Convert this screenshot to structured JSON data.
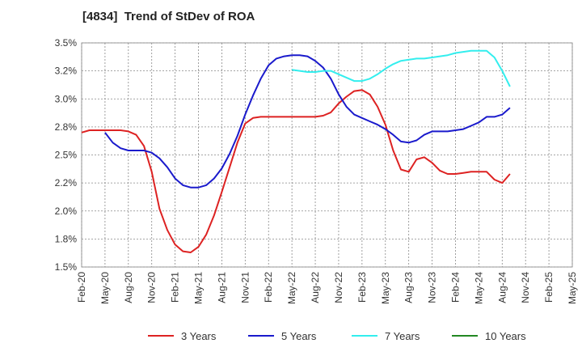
{
  "chart_data": {
    "type": "line",
    "title": "[4834]  Trend of StDev of ROA",
    "x_tick_labels": [
      "Feb-20",
      "May-20",
      "Aug-20",
      "Nov-20",
      "Feb-21",
      "May-21",
      "Aug-21",
      "Nov-21",
      "Feb-22",
      "May-22",
      "Aug-22",
      "Nov-22",
      "Feb-23",
      "May-23",
      "Aug-23",
      "Nov-23",
      "Feb-24",
      "May-24",
      "Aug-24",
      "Nov-24",
      "Feb-25",
      "May-25"
    ],
    "y_ticks": [
      1.5,
      1.75,
      2.0,
      2.25,
      2.5,
      2.75,
      3.0,
      3.25,
      3.5
    ],
    "y_tick_labels": [
      "1.5%",
      "1.8%",
      "2.0%",
      "2.2%",
      "2.5%",
      "2.8%",
      "3.0%",
      "3.2%",
      "3.5%"
    ],
    "ylim": [
      1.5,
      3.5
    ],
    "grid": true,
    "legend_position": "bottom",
    "series": [
      {
        "name": "3 Years",
        "color": "#dd2222",
        "start_index": 0,
        "values": [
          2.7,
          2.72,
          2.72,
          2.72,
          2.72,
          2.72,
          2.71,
          2.68,
          2.58,
          2.35,
          2.02,
          1.83,
          1.7,
          1.64,
          1.63,
          1.68,
          1.79,
          1.96,
          2.17,
          2.39,
          2.61,
          2.78,
          2.83,
          2.84,
          2.84,
          2.84,
          2.84,
          2.84,
          2.84,
          2.84,
          2.84,
          2.85,
          2.88,
          2.96,
          3.02,
          3.07,
          3.08,
          3.04,
          2.93,
          2.77,
          2.54,
          2.37,
          2.35,
          2.46,
          2.48,
          2.43,
          2.36,
          2.33,
          2.33,
          2.34,
          2.35,
          2.35,
          2.35,
          2.28,
          2.25,
          2.33
        ]
      },
      {
        "name": "5 Years",
        "color": "#1a1acc",
        "start_index": 3,
        "values": [
          2.7,
          2.61,
          2.56,
          2.54,
          2.54,
          2.54,
          2.52,
          2.47,
          2.39,
          2.29,
          2.23,
          2.21,
          2.21,
          2.23,
          2.29,
          2.38,
          2.51,
          2.67,
          2.86,
          3.03,
          3.18,
          3.3,
          3.36,
          3.38,
          3.39,
          3.39,
          3.38,
          3.34,
          3.28,
          3.18,
          3.04,
          2.93,
          2.86,
          2.83,
          2.8,
          2.77,
          2.73,
          2.68,
          2.62,
          2.61,
          2.63,
          2.68,
          2.71,
          2.71,
          2.71,
          2.72,
          2.73,
          2.76,
          2.79,
          2.84,
          2.84,
          2.86,
          2.92
        ]
      },
      {
        "name": "7 Years",
        "color": "#33eeee",
        "start_index": 27,
        "values": [
          3.26,
          3.25,
          3.24,
          3.24,
          3.25,
          3.25,
          3.22,
          3.19,
          3.16,
          3.16,
          3.18,
          3.22,
          3.27,
          3.31,
          3.34,
          3.35,
          3.36,
          3.36,
          3.37,
          3.38,
          3.39,
          3.41,
          3.42,
          3.43,
          3.43,
          3.43,
          3.37,
          3.25,
          3.11
        ]
      },
      {
        "name": "10 Years",
        "color": "#228822",
        "start_index": 0,
        "values": []
      }
    ]
  }
}
